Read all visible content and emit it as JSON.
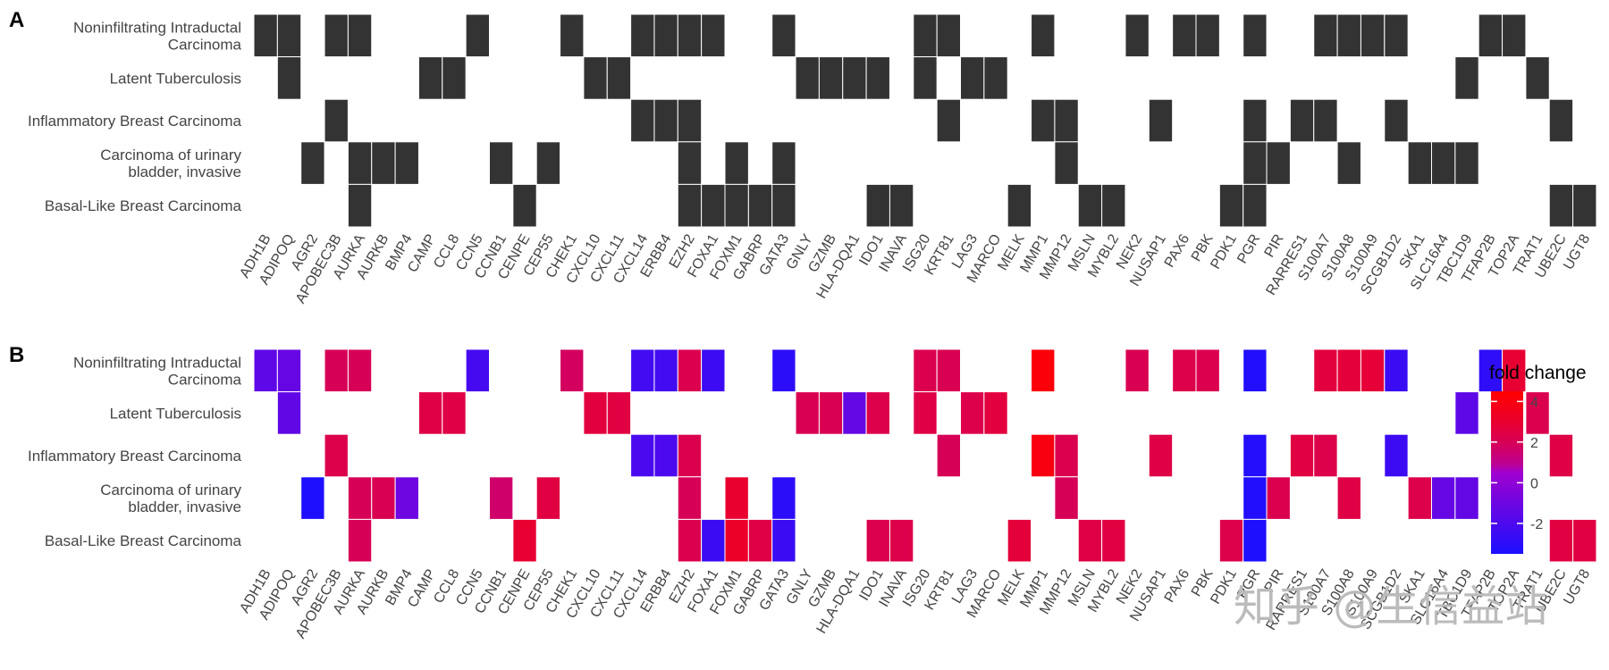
{
  "chart_data": [
    {
      "type": "heatmap",
      "panel_label": "A",
      "x_categories": [
        "ADH1B",
        "ADIPOQ",
        "AGR2",
        "APOBEC3B",
        "AURKA",
        "AURKB",
        "BMP4",
        "CAMP",
        "CCL8",
        "CCN5",
        "CCNB1",
        "CENPE",
        "CEP55",
        "CHEK1",
        "CXCL10",
        "CXCL11",
        "CXCL14",
        "ERBB4",
        "EZH2",
        "FOXA1",
        "FOXM1",
        "GABRP",
        "GATA3",
        "GNLY",
        "GZMB",
        "HLA-DQA1",
        "IDO1",
        "INAVA",
        "ISG20",
        "KRT81",
        "LAG3",
        "MARCO",
        "MELK",
        "MMP1",
        "MMP12",
        "MSLN",
        "MYBL2",
        "NEK2",
        "NUSAP1",
        "PAX6",
        "PBK",
        "PDK1",
        "PGR",
        "PIR",
        "RARRES1",
        "S100A7",
        "S100A8",
        "S100A9",
        "SCGB1D2",
        "SKA1",
        "SLC16A4",
        "TBC1D9",
        "TFAP2B",
        "TOP2A",
        "TRAT1",
        "UBE2C",
        "UGT8"
      ],
      "y_categories": [
        "Noninfiltrating Intraductal\nCarcinoma",
        "Latent Tuberculosis",
        "Inflammatory Breast Carcinoma",
        "Carcinoma of urinary\nbladder, invasive",
        "Basal-Like Breast Carcinoma"
      ],
      "cells": [
        [
          0,
          0
        ],
        [
          1,
          0
        ],
        [
          3,
          0
        ],
        [
          4,
          0
        ],
        [
          9,
          0
        ],
        [
          13,
          0
        ],
        [
          16,
          0
        ],
        [
          17,
          0
        ],
        [
          18,
          0
        ],
        [
          19,
          0
        ],
        [
          22,
          0
        ],
        [
          28,
          0
        ],
        [
          29,
          0
        ],
        [
          33,
          0
        ],
        [
          37,
          0
        ],
        [
          39,
          0
        ],
        [
          40,
          0
        ],
        [
          42,
          0
        ],
        [
          45,
          0
        ],
        [
          46,
          0
        ],
        [
          47,
          0
        ],
        [
          48,
          0
        ],
        [
          52,
          0
        ],
        [
          53,
          0
        ],
        [
          1,
          1
        ],
        [
          7,
          1
        ],
        [
          8,
          1
        ],
        [
          14,
          1
        ],
        [
          15,
          1
        ],
        [
          23,
          1
        ],
        [
          24,
          1
        ],
        [
          25,
          1
        ],
        [
          26,
          1
        ],
        [
          28,
          1
        ],
        [
          30,
          1
        ],
        [
          31,
          1
        ],
        [
          51,
          1
        ],
        [
          54,
          1
        ],
        [
          3,
          2
        ],
        [
          16,
          2
        ],
        [
          17,
          2
        ],
        [
          18,
          2
        ],
        [
          29,
          2
        ],
        [
          33,
          2
        ],
        [
          34,
          2
        ],
        [
          38,
          2
        ],
        [
          42,
          2
        ],
        [
          44,
          2
        ],
        [
          45,
          2
        ],
        [
          48,
          2
        ],
        [
          55,
          2
        ],
        [
          2,
          3
        ],
        [
          4,
          3
        ],
        [
          5,
          3
        ],
        [
          6,
          3
        ],
        [
          10,
          3
        ],
        [
          12,
          3
        ],
        [
          18,
          3
        ],
        [
          20,
          3
        ],
        [
          22,
          3
        ],
        [
          34,
          3
        ],
        [
          42,
          3
        ],
        [
          43,
          3
        ],
        [
          46,
          3
        ],
        [
          49,
          3
        ],
        [
          50,
          3
        ],
        [
          51,
          3
        ],
        [
          4,
          4
        ],
        [
          11,
          4
        ],
        [
          18,
          4
        ],
        [
          19,
          4
        ],
        [
          20,
          4
        ],
        [
          21,
          4
        ],
        [
          22,
          4
        ],
        [
          26,
          4
        ],
        [
          27,
          4
        ],
        [
          32,
          4
        ],
        [
          35,
          4
        ],
        [
          36,
          4
        ],
        [
          41,
          4
        ],
        [
          42,
          4
        ],
        [
          55,
          4
        ],
        [
          56,
          4
        ]
      ],
      "fill_color": "#333333"
    },
    {
      "type": "heatmap",
      "panel_label": "B",
      "x_categories": [
        "ADH1B",
        "ADIPOQ",
        "AGR2",
        "APOBEC3B",
        "AURKA",
        "AURKB",
        "BMP4",
        "CAMP",
        "CCL8",
        "CCN5",
        "CCNB1",
        "CENPE",
        "CEP55",
        "CHEK1",
        "CXCL10",
        "CXCL11",
        "CXCL14",
        "ERBB4",
        "EZH2",
        "FOXA1",
        "FOXM1",
        "GABRP",
        "GATA3",
        "GNLY",
        "GZMB",
        "HLA-DQA1",
        "IDO1",
        "INAVA",
        "ISG20",
        "KRT81",
        "LAG3",
        "MARCO",
        "MELK",
        "MMP1",
        "MMP12",
        "MSLN",
        "MYBL2",
        "NEK2",
        "NUSAP1",
        "PAX6",
        "PBK",
        "PDK1",
        "PGR",
        "PIR",
        "RARRES1",
        "S100A7",
        "S100A8",
        "S100A9",
        "SCGB1D2",
        "SKA1",
        "SLC16A4",
        "TBC1D9",
        "TFAP2B",
        "TOP2A",
        "TRAT1",
        "UBE2C",
        "UGT8"
      ],
      "y_categories": [
        "Noninfiltrating Intraductal\nCarcinoma",
        "Latent Tuberculosis",
        "Inflammatory Breast Carcinoma",
        "Carcinoma of urinary\nbladder, invasive",
        "Basal-Like Breast Carcinoma"
      ],
      "cells": [
        [
          0,
          0,
          -1.5
        ],
        [
          1,
          0,
          -1.2
        ],
        [
          3,
          0,
          2.0
        ],
        [
          4,
          0,
          2.0
        ],
        [
          9,
          0,
          -2.2
        ],
        [
          13,
          0,
          1.8
        ],
        [
          16,
          0,
          -2.3
        ],
        [
          17,
          0,
          -2.3
        ],
        [
          18,
          0,
          2.2
        ],
        [
          19,
          0,
          -2.5
        ],
        [
          22,
          0,
          -3.0
        ],
        [
          28,
          0,
          2.2
        ],
        [
          29,
          0,
          2.1
        ],
        [
          33,
          0,
          4.2
        ],
        [
          37,
          0,
          2.1
        ],
        [
          39,
          0,
          2.3
        ],
        [
          40,
          0,
          2.2
        ],
        [
          42,
          0,
          -3.3
        ],
        [
          45,
          0,
          2.6
        ],
        [
          46,
          0,
          2.7
        ],
        [
          47,
          0,
          2.8
        ],
        [
          48,
          0,
          -2.6
        ],
        [
          52,
          0,
          -2.9
        ],
        [
          53,
          0,
          2.9
        ],
        [
          1,
          1,
          -1.4
        ],
        [
          7,
          1,
          2.4
        ],
        [
          8,
          1,
          2.4
        ],
        [
          14,
          1,
          2.6
        ],
        [
          15,
          1,
          2.5
        ],
        [
          23,
          1,
          2.1
        ],
        [
          24,
          1,
          2.1
        ],
        [
          25,
          1,
          -1.3
        ],
        [
          26,
          1,
          2.3
        ],
        [
          28,
          1,
          2.4
        ],
        [
          30,
          1,
          2.3
        ],
        [
          31,
          1,
          2.6
        ],
        [
          51,
          1,
          -1.5
        ],
        [
          54,
          1,
          2.2
        ],
        [
          3,
          2,
          2.3
        ],
        [
          16,
          2,
          -2.1
        ],
        [
          17,
          2,
          -2.0
        ],
        [
          18,
          2,
          2.2
        ],
        [
          29,
          2,
          2.0
        ],
        [
          33,
          2,
          4.0
        ],
        [
          34,
          2,
          2.2
        ],
        [
          38,
          2,
          2.4
        ],
        [
          42,
          2,
          -3.2
        ],
        [
          44,
          2,
          2.5
        ],
        [
          45,
          2,
          2.3
        ],
        [
          48,
          2,
          -2.5
        ],
        [
          55,
          2,
          2.4
        ],
        [
          2,
          3,
          -3.4
        ],
        [
          4,
          3,
          2.0
        ],
        [
          5,
          3,
          2.1
        ],
        [
          6,
          3,
          -1.0
        ],
        [
          10,
          3,
          1.6
        ],
        [
          12,
          3,
          2.5
        ],
        [
          18,
          3,
          2.0
        ],
        [
          20,
          3,
          3.0
        ],
        [
          22,
          3,
          -3.0
        ],
        [
          34,
          3,
          2.0
        ],
        [
          42,
          3,
          -3.3
        ],
        [
          43,
          3,
          2.2
        ],
        [
          46,
          3,
          2.4
        ],
        [
          49,
          3,
          2.3
        ],
        [
          50,
          3,
          -1.2
        ],
        [
          51,
          3,
          -1.3
        ],
        [
          4,
          4,
          2.0
        ],
        [
          11,
          4,
          2.9
        ],
        [
          18,
          4,
          2.2
        ],
        [
          19,
          4,
          -2.6
        ],
        [
          20,
          4,
          3.2
        ],
        [
          21,
          4,
          2.4
        ],
        [
          22,
          4,
          -2.6
        ],
        [
          26,
          4,
          2.2
        ],
        [
          27,
          4,
          2.3
        ],
        [
          32,
          4,
          2.7
        ],
        [
          35,
          4,
          2.4
        ],
        [
          36,
          4,
          2.5
        ],
        [
          41,
          4,
          2.3
        ],
        [
          42,
          4,
          -3.4
        ],
        [
          55,
          4,
          2.5
        ],
        [
          56,
          4,
          2.5
        ]
      ],
      "color_scale": {
        "title": "fold change",
        "low_color": "#1b0fff",
        "mid_color": "#a000d0",
        "high_color": "#ff0000",
        "range": [
          -3.5,
          4.5
        ],
        "ticks": [
          4,
          2,
          0,
          -2
        ]
      }
    }
  ],
  "watermark_text": "知乎 @生信益站"
}
